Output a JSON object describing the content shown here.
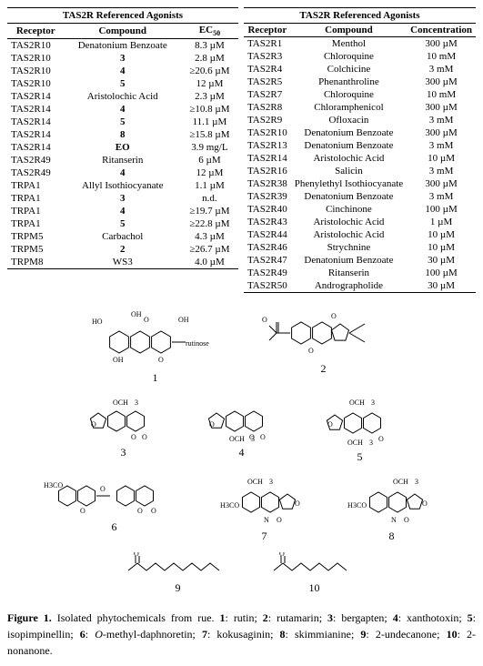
{
  "left_table": {
    "title": "TAS2R Referenced Agonists",
    "columns": [
      "Receptor",
      "Compound",
      "EC50"
    ],
    "ec50_header_html": "EC<sub>50</sub>",
    "rows": [
      [
        "TAS2R10",
        "Denatonium Benzoate",
        "8.3 µM"
      ],
      [
        "TAS2R10",
        "3",
        "2.8 µM"
      ],
      [
        "TAS2R10",
        "4",
        "≥20.6 µM"
      ],
      [
        "TAS2R10",
        "5",
        "12 µM"
      ],
      [
        "TAS2R14",
        "Aristolochic Acid",
        "2.3 µM"
      ],
      [
        "TAS2R14",
        "4",
        "≥10.8 µM"
      ],
      [
        "TAS2R14",
        "5",
        "11.1 µM"
      ],
      [
        "TAS2R14",
        "8",
        "≥15.8 µM"
      ],
      [
        "TAS2R14",
        "EO",
        "3.9 mg/L"
      ],
      [
        "TAS2R49",
        "Ritanserin",
        "6 µM"
      ],
      [
        "TAS2R49",
        "4",
        "12 µM"
      ],
      [
        "TRPA1",
        "Allyl Isothiocyanate",
        "1.1 µM"
      ],
      [
        "TRPA1",
        "3",
        "n.d."
      ],
      [
        "TRPA1",
        "4",
        "≥19.7 µM"
      ],
      [
        "TRPA1",
        "5",
        "≥22.8 µM"
      ],
      [
        "TRPM5",
        "Carbachol",
        "4.3 µM"
      ],
      [
        "TRPM5",
        "2",
        "≥26.7 µM"
      ],
      [
        "TRPM8",
        "WS3",
        "4.0 µM"
      ]
    ],
    "bold_compounds": [
      "3",
      "4",
      "5",
      "8",
      "EO",
      "2"
    ]
  },
  "right_table": {
    "title": "TAS2R Referenced Agonists",
    "columns": [
      "Receptor",
      "Compound",
      "Concentration"
    ],
    "rows": [
      [
        "TAS2R1",
        "Menthol",
        "300 µM"
      ],
      [
        "TAS2R3",
        "Chloroquine",
        "10 mM"
      ],
      [
        "TAS2R4",
        "Colchicine",
        "3 mM"
      ],
      [
        "TAS2R5",
        "Phenanthroline",
        "300 µM"
      ],
      [
        "TAS2R7",
        "Chloroquine",
        "10 mM"
      ],
      [
        "TAS2R8",
        "Chloramphenicol",
        "300 µM"
      ],
      [
        "TAS2R9",
        "Ofloxacin",
        "3 mM"
      ],
      [
        "TAS2R10",
        "Denatonium Benzoate",
        "300 µM"
      ],
      [
        "TAS2R13",
        "Denatonium Benzoate",
        "3 mM"
      ],
      [
        "TAS2R14",
        "Aristolochic Acid",
        "10 µM"
      ],
      [
        "TAS2R16",
        "Salicin",
        "3 mM"
      ],
      [
        "TAS2R38",
        "Phenylethyl Isothiocyanate",
        "300 µM"
      ],
      [
        "TAS2R39",
        "Denatonium Benzoate",
        "3 mM"
      ],
      [
        "TAS2R40",
        "Cinchinone",
        "100 µM"
      ],
      [
        "TAS2R43",
        "Aristolochic Acid",
        "1 µM"
      ],
      [
        "TAS2R44",
        "Aristolochic Acid",
        "10 µM"
      ],
      [
        "TAS2R46",
        "Strychnine",
        "10 µM"
      ],
      [
        "TAS2R47",
        "Denatonium Benzoate",
        "30 µM"
      ],
      [
        "TAS2R49",
        "Ritanserin",
        "100 µM"
      ],
      [
        "TAS2R50",
        "Andrographolide",
        "30 µM"
      ]
    ]
  },
  "structures": {
    "rows": [
      [
        1,
        2
      ],
      [
        3,
        4,
        5
      ],
      [
        6,
        7,
        8
      ],
      [
        9,
        10
      ]
    ],
    "colors": {
      "stroke": "#000000",
      "text": "#000000"
    },
    "line_width": 1,
    "font_size": 8
  },
  "caption": {
    "prefix": "Figure 1.",
    "text": " Isolated phytochemicals from rue. ",
    "items": [
      {
        "n": "1",
        "name": "rutin"
      },
      {
        "n": "2",
        "name": "rutamarin"
      },
      {
        "n": "3",
        "name": "bergapten"
      },
      {
        "n": "4",
        "name": "xanthotoxin"
      },
      {
        "n": "5",
        "name": "isopimpinellin"
      },
      {
        "n": "6",
        "name": "O-methyl-daphnoretin",
        "italic_prefix": "O"
      },
      {
        "n": "7",
        "name": "kokusaginin"
      },
      {
        "n": "8",
        "name": "skimmianine"
      },
      {
        "n": "9",
        "name": "2-undecanone"
      },
      {
        "n": "10",
        "name": "2-nonanone"
      }
    ]
  }
}
